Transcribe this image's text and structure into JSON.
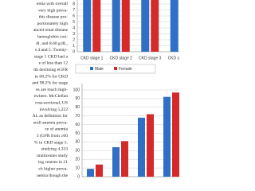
{
  "text_lines": [
    "emia with overall",
    "very high preva-",
    "this disease pro-",
    "portionately high",
    "anced renal disease",
    "hemoglobin con-",
    "dl, and 8.60 g/dL,",
    "s 4 and 5. Twenty-",
    "stage 1 CKD had a",
    "e of less than 12",
    "ith declining eGFR",
    "to 68.2% for CKD",
    "and 98.2% for stage",
    "es are much high-",
    "ewhere. McClellan",
    "ross-sectional, US",
    "involving 5,222",
    "AL as definition for",
    "erall anemia preva-",
    "ce of anemia",
    "3 (GFR from ≥60",
    "% in CKD stage 5.",
    "studying 4,333",
    "multicenter study",
    "ing centres in 21",
    "ch higher preva-",
    "nemia though the"
  ],
  "chart_data": [
    {
      "type": "bar",
      "categories": [
        "CKD stage 1",
        "CKD stage 2",
        "CKD stage 3",
        "CKD stage 4"
      ],
      "series": [
        {
          "name": "Male",
          "color": "#2f6fc6",
          "values": [
            9,
            9,
            9,
            9
          ]
        },
        {
          "name": "Female",
          "color": "#d42a2a",
          "values": [
            9,
            9,
            9,
            9
          ]
        }
      ],
      "ylim": [
        0,
        8
      ],
      "yticks": [
        0,
        1,
        2,
        3,
        4,
        5,
        6,
        7,
        8
      ],
      "grid": true,
      "legend": "bottom"
    },
    {
      "type": "bar",
      "categories": [
        "CKD stage 1",
        "CKD stage 2",
        "CKD stage 3",
        "CKD stage 4"
      ],
      "series": [
        {
          "name": "Male",
          "color": "#2f6fc6",
          "values": [
            9,
            34,
            68,
            92
          ]
        },
        {
          "name": "Female",
          "color": "#d42a2a",
          "values": [
            14,
            41,
            72,
            97
          ]
        }
      ],
      "ylim": [
        0,
        100
      ],
      "yticks": [
        0,
        10,
        20,
        30,
        40,
        50,
        60,
        70,
        80,
        90,
        100
      ],
      "grid": true
    }
  ]
}
